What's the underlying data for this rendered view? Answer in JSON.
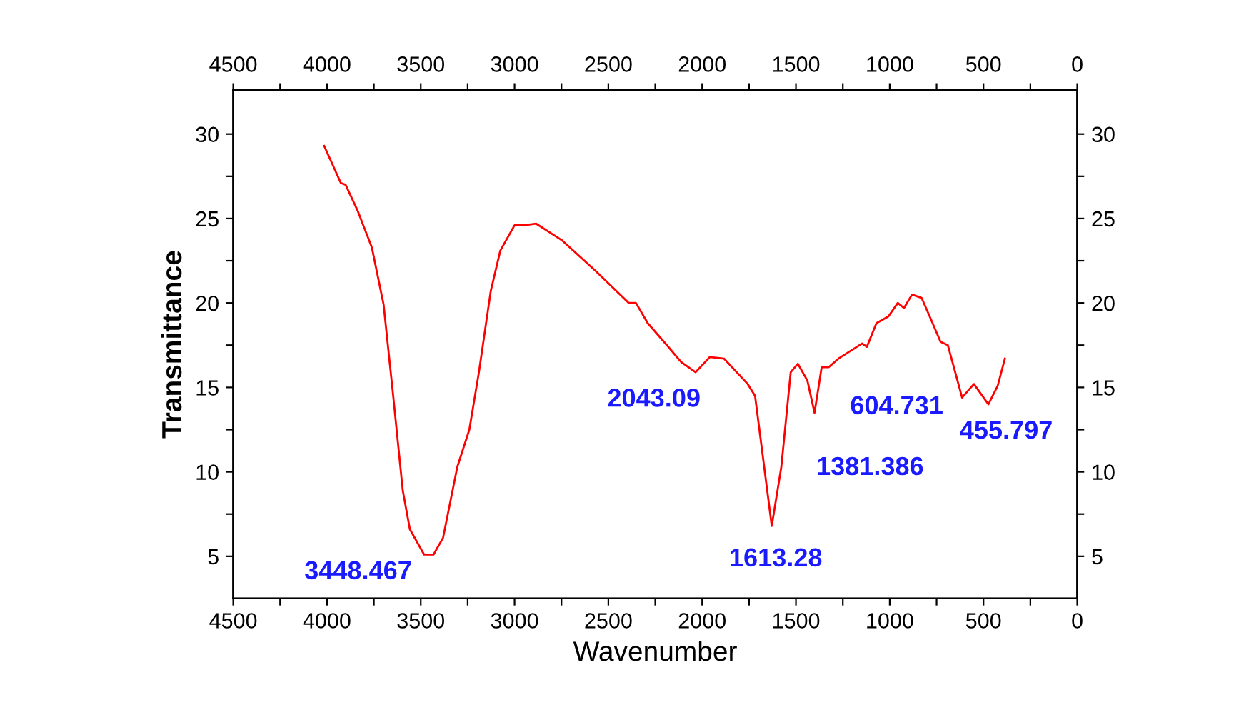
{
  "chart_data": {
    "type": "line",
    "xlabel": "Wavenumber",
    "ylabel": "Transmittance",
    "series": [
      {
        "color": "#ff0000",
        "x": [
          4015,
          3926,
          3901,
          3838,
          3761,
          3698,
          3647,
          3596,
          3558,
          3482,
          3432,
          3381,
          3305,
          3241,
          3190,
          3127,
          3076,
          3000,
          2949,
          2886,
          2746,
          2568,
          2391,
          2353,
          2290,
          2188,
          2112,
          2035,
          1959,
          1883,
          1757,
          1718,
          1629,
          1578,
          1528,
          1490,
          1439,
          1401,
          1363,
          1325,
          1274,
          1147,
          1122,
          1071,
          1007,
          957,
          924,
          881,
          830,
          779,
          729,
          690,
          614,
          551,
          474,
          424,
          386
        ],
        "values": [
          29.3,
          27.1,
          27.0,
          25.5,
          23.3,
          19.9,
          14.5,
          8.9,
          6.6,
          5.1,
          5.1,
          6.1,
          10.3,
          12.5,
          15.9,
          20.7,
          23.1,
          24.6,
          24.6,
          24.7,
          23.7,
          21.9,
          20.0,
          20.0,
          18.8,
          17.5,
          16.5,
          15.9,
          16.8,
          16.7,
          15.2,
          14.5,
          6.8,
          10.3,
          15.9,
          16.4,
          15.4,
          13.5,
          16.2,
          16.2,
          16.7,
          17.6,
          17.4,
          18.8,
          19.2,
          20.0,
          19.7,
          20.5,
          20.3,
          19.0,
          17.7,
          17.5,
          14.4,
          15.2,
          14.0,
          15.1,
          16.7
        ]
      }
    ],
    "xlim": [
      4500,
      0
    ],
    "xticks": [
      4500,
      {
        "value": 4250,
        "label": null
      },
      4000,
      {
        "value": 3750,
        "label": null
      },
      3500,
      {
        "value": 3250,
        "label": null
      },
      3000,
      {
        "value": 2750,
        "label": null
      },
      2500,
      {
        "value": 2250,
        "label": null
      },
      2000,
      {
        "value": 1750,
        "label": null
      },
      1500,
      {
        "value": 1250,
        "label": null
      },
      1000,
      {
        "value": 750,
        "label": null
      },
      500,
      {
        "value": 250,
        "label": null
      },
      0
    ],
    "x2lim": [
      4500,
      0
    ],
    "x2ticks": [
      4500,
      {
        "value": 4250,
        "label": null
      },
      4000,
      {
        "value": 3750,
        "label": null
      },
      3500,
      {
        "value": 3250,
        "label": null
      },
      3000,
      {
        "value": 2750,
        "label": null
      },
      2500,
      {
        "value": 2250,
        "label": null
      },
      2000,
      {
        "value": 1750,
        "label": null
      },
      1500,
      {
        "value": 1250,
        "label": null
      },
      1000,
      {
        "value": 750,
        "label": null
      },
      500,
      {
        "value": 250,
        "label": null
      },
      0
    ],
    "ylim": [
      2.5,
      32.6
    ],
    "yticks": [
      5,
      {
        "value": 7.5,
        "label": null
      },
      10,
      {
        "value": 12.5,
        "label": null
      },
      15,
      {
        "value": 17.5,
        "label": null
      },
      20,
      {
        "value": 22.5,
        "label": null
      },
      25,
      {
        "value": 27.5,
        "label": null
      },
      30
    ],
    "y2lim": [
      2.5,
      32.6
    ],
    "y2ticks": [
      5,
      {
        "value": 7.5,
        "label": null
      },
      10,
      {
        "value": 12.5,
        "label": null
      },
      15,
      {
        "value": 17.5,
        "label": null
      },
      20,
      {
        "value": 22.5,
        "label": null
      },
      25,
      {
        "value": 27.5,
        "label": null
      },
      30
    ],
    "grid": false,
    "legend": false,
    "marker": "none",
    "line_style": "solid",
    "annotations": [
      {
        "text": "3448.467",
        "x": 3432,
        "y": 5.1
      },
      {
        "text": "2043.09",
        "x": 2035,
        "y": 15.9
      },
      {
        "text": "1613.28",
        "x": 1629,
        "y": 6.8
      },
      {
        "text": "1381.386",
        "x": 1401,
        "y": 13.5
      },
      {
        "text": "604.731",
        "x": 614,
        "y": 14.4
      },
      {
        "text": "455.797",
        "x": 474,
        "y": 14.0
      }
    ]
  }
}
